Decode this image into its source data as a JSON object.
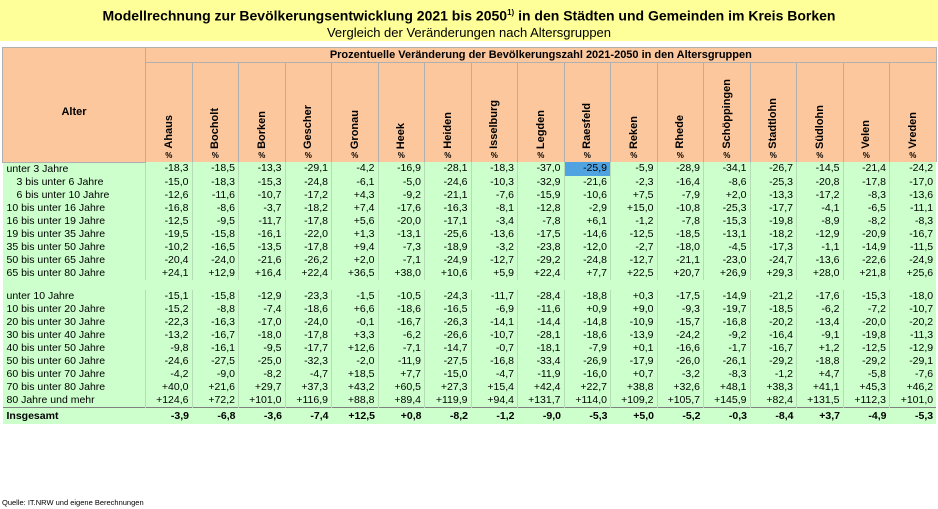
{
  "title": {
    "main": "Modellrechnung zur Bevölkerungsentwicklung 2021 bis 2050",
    "footnote_mark": "1)",
    "main_rest": " in den Städten und Gemeinden im Kreis Borken",
    "subtitle": "Vergleich der Veränderungen nach Altersgruppen"
  },
  "table": {
    "row_header": "Alter",
    "group_header": "Prozentuelle Veränderung der Bevölkerungszahl 2021-2050 in den Altersgruppen",
    "unit": "%",
    "cities": [
      "Ahaus",
      "Bocholt",
      "Borken",
      "Gescher",
      "Gronau",
      "Heek",
      "Heiden",
      "Isselburg",
      "Legden",
      "Raesfeld",
      "Reken",
      "Rhede",
      "Schöppingen",
      "Stadtlohn",
      "Südlohn",
      "Velen",
      "Vreden"
    ],
    "block1": [
      {
        "label": "unter 3 Jahre",
        "indent": false,
        "values": [
          "-18,3",
          "-18,5",
          "-13,3",
          "-29,1",
          "-4,2",
          "-16,9",
          "-28,1",
          "-18,3",
          "-37,0",
          "-25,9",
          "-5,9",
          "-28,9",
          "-34,1",
          "-26,7",
          "-14,5",
          "-21,4",
          "-24,2"
        ]
      },
      {
        "label": "3 bis unter  6 Jahre",
        "indent": true,
        "values": [
          "-15,0",
          "-18,3",
          "-15,3",
          "-24,8",
          "-6,1",
          "-5,0",
          "-24,6",
          "-10,3",
          "-32,9",
          "-21,6",
          "-2,3",
          "-16,4",
          "-8,6",
          "-25,3",
          "-20,8",
          "-17,8",
          "-17,0"
        ]
      },
      {
        "label": "6 bis unter 10 Jahre",
        "indent": true,
        "values": [
          "-12,6",
          "-11,6",
          "-10,7",
          "-17,2",
          "+4,3",
          "-9,2",
          "-21,1",
          "-7,6",
          "-15,9",
          "-10,6",
          "+7,5",
          "-7,9",
          "+2,0",
          "-13,3",
          "-17,2",
          "-8,3",
          "-13,6"
        ]
      },
      {
        "label": "10 bis unter 16 Jahre",
        "indent": false,
        "values": [
          "-16,8",
          "-8,6",
          "-3,7",
          "-18,2",
          "+7,4",
          "-17,6",
          "-16,3",
          "-8,1",
          "-12,8",
          "-2,9",
          "+15,0",
          "-10,8",
          "-25,3",
          "-17,7",
          "-4,1",
          "-6,5",
          "-11,1"
        ]
      },
      {
        "label": "16 bis unter 19 Jahre",
        "indent": false,
        "values": [
          "-12,5",
          "-9,5",
          "-11,7",
          "-17,8",
          "+5,6",
          "-20,0",
          "-17,1",
          "-3,4",
          "-7,8",
          "+6,1",
          "-1,2",
          "-7,8",
          "-15,3",
          "-19,8",
          "-8,9",
          "-8,2",
          "-8,3"
        ]
      },
      {
        "label": "19 bis unter 35 Jahre",
        "indent": false,
        "values": [
          "-19,5",
          "-15,8",
          "-16,1",
          "-22,0",
          "+1,3",
          "-13,1",
          "-25,6",
          "-13,6",
          "-17,5",
          "-14,6",
          "-12,5",
          "-18,5",
          "-13,1",
          "-18,2",
          "-12,9",
          "-20,9",
          "-16,7"
        ]
      },
      {
        "label": "35 bis unter 50 Jahre",
        "indent": false,
        "values": [
          "-10,2",
          "-16,5",
          "-13,5",
          "-17,8",
          "+9,4",
          "-7,3",
          "-18,9",
          "-3,2",
          "-23,8",
          "-12,0",
          "-2,7",
          "-18,0",
          "-4,5",
          "-17,3",
          "-1,1",
          "-14,9",
          "-11,5"
        ]
      },
      {
        "label": "50 bis unter 65 Jahre",
        "indent": false,
        "values": [
          "-20,4",
          "-24,0",
          "-21,6",
          "-26,2",
          "+2,0",
          "-7,1",
          "-24,9",
          "-12,7",
          "-29,2",
          "-24,8",
          "-12,7",
          "-21,1",
          "-23,0",
          "-24,7",
          "-13,6",
          "-22,6",
          "-24,9"
        ]
      },
      {
        "label": "65 bis unter 80 Jahre",
        "indent": false,
        "values": [
          "+24,1",
          "+12,9",
          "+16,4",
          "+22,4",
          "+36,5",
          "+38,0",
          "+10,6",
          "+5,9",
          "+22,4",
          "+7,7",
          "+22,5",
          "+20,7",
          "+26,9",
          "+29,3",
          "+28,0",
          "+21,8",
          "+25,6"
        ]
      }
    ],
    "block2": [
      {
        "label": "unter 10 Jahre",
        "indent": false,
        "values": [
          "-15,1",
          "-15,8",
          "-12,9",
          "-23,3",
          "-1,5",
          "-10,5",
          "-24,3",
          "-11,7",
          "-28,4",
          "-18,8",
          "+0,3",
          "-17,5",
          "-14,9",
          "-21,2",
          "-17,6",
          "-15,3",
          "-18,0"
        ]
      },
      {
        "label": "10 bis unter 20 Jahre",
        "indent": false,
        "values": [
          "-15,2",
          "-8,8",
          "-7,4",
          "-18,6",
          "+6,6",
          "-18,6",
          "-16,5",
          "-6,9",
          "-11,6",
          "+0,9",
          "+9,0",
          "-9,3",
          "-19,7",
          "-18,5",
          "-6,2",
          "-7,2",
          "-10,7"
        ]
      },
      {
        "label": "20 bis unter 30 Jahre",
        "indent": false,
        "values": [
          "-22,3",
          "-16,3",
          "-17,0",
          "-24,0",
          "-0,1",
          "-16,7",
          "-26,3",
          "-14,1",
          "-14,4",
          "-14,8",
          "-10,9",
          "-15,7",
          "-16,8",
          "-20,2",
          "-13,4",
          "-20,0",
          "-20,2"
        ]
      },
      {
        "label": "30 bis unter 40 Jahre",
        "indent": false,
        "values": [
          "-13,2",
          "-16,7",
          "-18,0",
          "-17,8",
          "+3,3",
          "-6,2",
          "-26,6",
          "-10,7",
          "-28,1",
          "-18,6",
          "-13,9",
          "-24,2",
          "-9,2",
          "-16,4",
          "-9,1",
          "-19,8",
          "-11,3"
        ]
      },
      {
        "label": "40 bis unter 50 Jahre",
        "indent": false,
        "values": [
          "-9,8",
          "-16,1",
          "-9,5",
          "-17,7",
          "+12,6",
          "-7,1",
          "-14,7",
          "-0,7",
          "-18,1",
          "-7,9",
          "+0,1",
          "-16,6",
          "-1,7",
          "-16,7",
          "+1,2",
          "-12,5",
          "-12,9"
        ]
      },
      {
        "label": "50 bis unter 60 Jahre",
        "indent": false,
        "values": [
          "-24,6",
          "-27,5",
          "-25,0",
          "-32,3",
          "-2,0",
          "-11,9",
          "-27,5",
          "-16,8",
          "-33,4",
          "-26,9",
          "-17,9",
          "-26,0",
          "-26,1",
          "-29,2",
          "-18,8",
          "-29,2",
          "-29,1"
        ]
      },
      {
        "label": "60 bis unter 70 Jahre",
        "indent": false,
        "values": [
          "-4,2",
          "-9,0",
          "-8,2",
          "-4,7",
          "+18,5",
          "+7,7",
          "-15,0",
          "-4,7",
          "-11,9",
          "-16,0",
          "+0,7",
          "-3,2",
          "-8,3",
          "-1,2",
          "+4,7",
          "-5,8",
          "-7,6"
        ]
      },
      {
        "label": "70 bis unter 80 Jahre",
        "indent": false,
        "values": [
          "+40,0",
          "+21,6",
          "+29,7",
          "+37,3",
          "+43,2",
          "+60,5",
          "+27,3",
          "+15,4",
          "+42,4",
          "+22,7",
          "+38,8",
          "+32,6",
          "+48,1",
          "+38,3",
          "+41,1",
          "+45,3",
          "+46,2"
        ]
      },
      {
        "label": "80 Jahre und mehr",
        "indent": false,
        "values": [
          "+124,6",
          "+72,2",
          "+101,0",
          "+116,9",
          "+88,8",
          "+89,4",
          "+119,9",
          "+94,4",
          "+131,7",
          "+114,0",
          "+109,2",
          "+105,7",
          "+145,9",
          "+82,4",
          "+131,5",
          "+112,3",
          "+101,0"
        ]
      }
    ],
    "total": {
      "label": "Insgesamt",
      "values": [
        "-3,9",
        "-6,8",
        "-3,6",
        "-7,4",
        "+12,5",
        "+0,8",
        "-8,2",
        "-1,2",
        "-9,0",
        "-5,3",
        "+5,0",
        "-5,2",
        "-0,3",
        "-8,4",
        "+3,7",
        "-4,9",
        "-5,3"
      ]
    },
    "highlight": {
      "block": "block1",
      "row": 0,
      "col": 9,
      "color": "#4fa3e0"
    }
  },
  "source": "Quelle: IT.NRW und eigene Berechnungen",
  "colors": {
    "title_bg": "#ffff99",
    "header_bg": "#fcc79c",
    "body_bg": "#ccffcc",
    "selection": "#4fa3e0"
  }
}
